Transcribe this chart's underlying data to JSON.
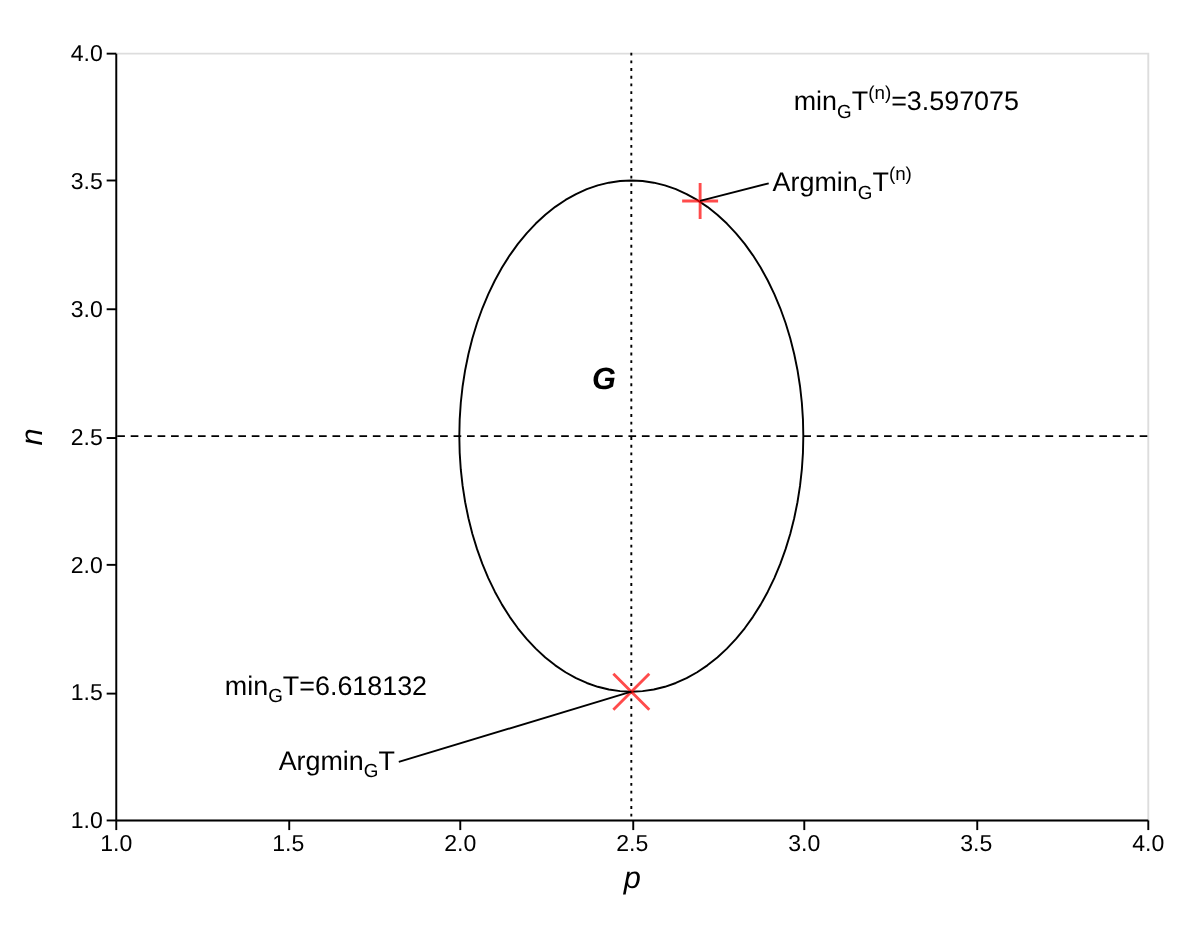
{
  "chart_data": {
    "type": "scatter",
    "xlabel": "p",
    "ylabel": "n",
    "xlim": [
      1.0,
      4.0
    ],
    "ylim": [
      1.0,
      4.0
    ],
    "xticks": [
      {
        "value": 1.0,
        "label": "1.0"
      },
      {
        "value": 1.5,
        "label": "1.5"
      },
      {
        "value": 2.0,
        "label": "2.0"
      },
      {
        "value": 2.5,
        "label": "2.5"
      },
      {
        "value": 3.0,
        "label": "3.0"
      },
      {
        "value": 3.5,
        "label": "3.5"
      },
      {
        "value": 4.0,
        "label": "4.0"
      }
    ],
    "yticks": [
      {
        "value": 1.0,
        "label": "1.0"
      },
      {
        "value": 1.5,
        "label": "1.5"
      },
      {
        "value": 2.0,
        "label": "2.0"
      },
      {
        "value": 2.5,
        "label": "2.5"
      },
      {
        "value": 3.0,
        "label": "3.0"
      },
      {
        "value": 3.5,
        "label": "3.5"
      },
      {
        "value": 4.0,
        "label": "4.0"
      }
    ],
    "grid": false,
    "series": [
      {
        "marker": "cross",
        "color": "#ff0000",
        "x": [
          2.7
        ],
        "values": [
          3.42
        ]
      },
      {
        "marker": "x",
        "color": "#ff0000",
        "x": [
          2.5
        ],
        "values": [
          1.5
        ]
      }
    ],
    "ref_lines": [
      {
        "axis": "x",
        "value": 2.5,
        "color": "#000000",
        "line_style": "dotted"
      },
      {
        "axis": "y",
        "value": 2.5,
        "color": "#000000",
        "line_style": "dashed"
      }
    ],
    "annotations": [
      "min$_{G}$T$^{(n)}$=3.597075",
      {
        "text": "Argmin$_{G}$T$^{(n)}$",
        "x": 2.7,
        "y": 3.42
      },
      "min$_{G}$T=6.618132",
      {
        "text": "Argmin$_{G}$T",
        "x": 2.5,
        "y": 1.5
      },
      "G"
    ]
  }
}
